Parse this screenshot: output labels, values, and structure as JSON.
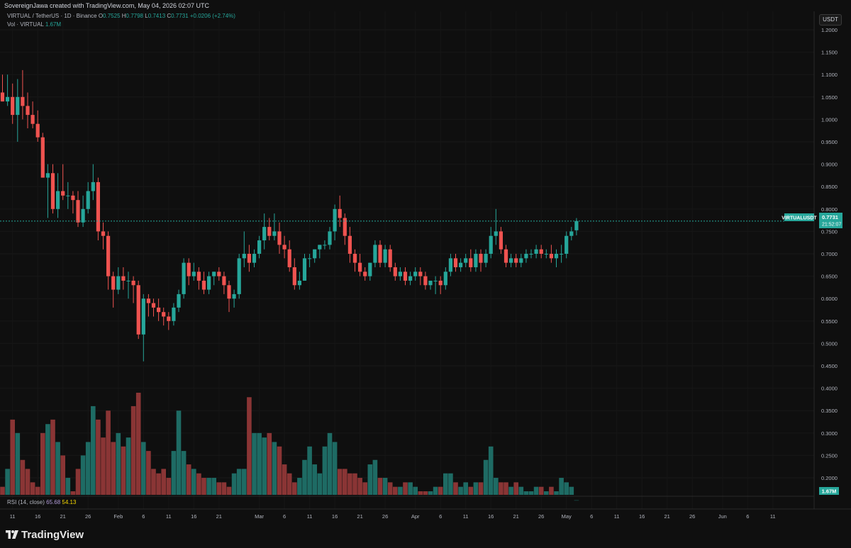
{
  "header": {
    "credit": "SovereignJawa created with TradingView.com, May 04, 2026 02:07 UTC"
  },
  "legend": {
    "symbol": "VIRTUAL / TetherUS · 1D · Binance",
    "o_label": "O",
    "o": "0.7525",
    "h_label": "H",
    "h": "0.7798",
    "l_label": "L",
    "l": "0.7413",
    "c_label": "C",
    "c": "0.7731",
    "change": "+0.0206 (+2.74%)",
    "vol_label": "Vol · VIRTUAL",
    "vol": "1.67M"
  },
  "rsi": {
    "label": "RSI (14, close)",
    "v1": "65.68",
    "v2": "54.13"
  },
  "currency_button": "USDT",
  "price_tag": {
    "symbol": "VIRTUALUSDT",
    "price": "0.7731",
    "countdown": "21:52:07"
  },
  "volume_tag": "1.67M",
  "footer": {
    "brand": "TradingView"
  },
  "colors": {
    "up": "#26a69a",
    "down": "#ef5350",
    "up_volume": "#1e6b64",
    "down_volume": "#8a3535",
    "bg": "#0f0f0f"
  },
  "chart_data": {
    "type": "candlestick",
    "y_axis": {
      "ticks": [
        "1.2000",
        "1.1500",
        "1.1000",
        "1.0500",
        "1.0000",
        "0.9500",
        "0.9000",
        "0.8500",
        "0.8000",
        "0.7500",
        "0.7000",
        "0.6500",
        "0.6000",
        "0.5500",
        "0.5000",
        "0.4500",
        "0.4000",
        "0.3500",
        "0.3000",
        "0.2500",
        "0.2000"
      ],
      "range": [
        0.17,
        1.215
      ]
    },
    "x_axis": {
      "start": "2026-01-09",
      "ticks": [
        {
          "label": "11",
          "day": 2
        },
        {
          "label": "16",
          "day": 7
        },
        {
          "label": "21",
          "day": 12
        },
        {
          "label": "26",
          "day": 17
        },
        {
          "label": "Feb",
          "day": 23
        },
        {
          "label": "6",
          "day": 28
        },
        {
          "label": "11",
          "day": 33
        },
        {
          "label": "16",
          "day": 38
        },
        {
          "label": "21",
          "day": 43
        },
        {
          "label": "Mar",
          "day": 51
        },
        {
          "label": "6",
          "day": 56
        },
        {
          "label": "11",
          "day": 61
        },
        {
          "label": "16",
          "day": 66
        },
        {
          "label": "21",
          "day": 71
        },
        {
          "label": "26",
          "day": 76
        },
        {
          "label": "Apr",
          "day": 82
        },
        {
          "label": "6",
          "day": 87
        },
        {
          "label": "11",
          "day": 92
        },
        {
          "label": "16",
          "day": 97
        },
        {
          "label": "21",
          "day": 102
        },
        {
          "label": "26",
          "day": 107
        },
        {
          "label": "May",
          "day": 112
        },
        {
          "label": "6",
          "day": 117
        },
        {
          "label": "11",
          "day": 122
        },
        {
          "label": "16",
          "day": 127
        },
        {
          "label": "21",
          "day": 132
        },
        {
          "label": "26",
          "day": 137
        },
        {
          "label": "Jun",
          "day": 143
        },
        {
          "label": "6",
          "day": 148
        },
        {
          "label": "11",
          "day": 153
        }
      ]
    },
    "ohlc": [
      [
        1.06,
        1.1,
        1.04,
        1.04
      ],
      [
        1.04,
        1.1,
        1.03,
        1.05
      ],
      [
        1.05,
        1.08,
        0.99,
        1.01
      ],
      [
        1.01,
        1.09,
        0.95,
        1.05
      ],
      [
        1.05,
        1.11,
        1.0,
        1.03
      ],
      [
        1.03,
        1.06,
        0.98,
        1.01
      ],
      [
        1.01,
        1.04,
        0.98,
        0.99
      ],
      [
        0.99,
        1.02,
        0.95,
        0.96
      ],
      [
        0.96,
        0.97,
        0.87,
        0.87
      ],
      [
        0.87,
        0.9,
        0.78,
        0.88
      ],
      [
        0.88,
        0.9,
        0.79,
        0.8
      ],
      [
        0.8,
        0.88,
        0.78,
        0.84
      ],
      [
        0.84,
        0.9,
        0.82,
        0.83
      ],
      [
        0.83,
        0.86,
        0.8,
        0.83
      ],
      [
        0.83,
        0.84,
        0.79,
        0.82
      ],
      [
        0.82,
        0.84,
        0.76,
        0.77
      ],
      [
        0.77,
        0.83,
        0.76,
        0.8
      ],
      [
        0.8,
        0.86,
        0.79,
        0.84
      ],
      [
        0.84,
        0.9,
        0.82,
        0.86
      ],
      [
        0.86,
        0.87,
        0.73,
        0.75
      ],
      [
        0.75,
        0.77,
        0.71,
        0.74
      ],
      [
        0.74,
        0.75,
        0.62,
        0.65
      ],
      [
        0.65,
        0.66,
        0.58,
        0.62
      ],
      [
        0.62,
        0.67,
        0.61,
        0.65
      ],
      [
        0.65,
        0.67,
        0.62,
        0.64
      ],
      [
        0.64,
        0.66,
        0.6,
        0.64
      ],
      [
        0.64,
        0.65,
        0.59,
        0.63
      ],
      [
        0.63,
        0.64,
        0.51,
        0.52
      ],
      [
        0.52,
        0.61,
        0.46,
        0.6
      ],
      [
        0.6,
        0.61,
        0.56,
        0.59
      ],
      [
        0.59,
        0.6,
        0.56,
        0.58
      ],
      [
        0.58,
        0.6,
        0.55,
        0.57
      ],
      [
        0.57,
        0.58,
        0.54,
        0.56
      ],
      [
        0.56,
        0.57,
        0.53,
        0.55
      ],
      [
        0.55,
        0.59,
        0.54,
        0.58
      ],
      [
        0.58,
        0.62,
        0.57,
        0.61
      ],
      [
        0.61,
        0.69,
        0.6,
        0.68
      ],
      [
        0.68,
        0.69,
        0.63,
        0.65
      ],
      [
        0.65,
        0.68,
        0.64,
        0.66
      ],
      [
        0.66,
        0.67,
        0.62,
        0.64
      ],
      [
        0.64,
        0.66,
        0.61,
        0.62
      ],
      [
        0.62,
        0.66,
        0.61,
        0.65
      ],
      [
        0.65,
        0.66,
        0.63,
        0.66
      ],
      [
        0.66,
        0.67,
        0.64,
        0.65
      ],
      [
        0.65,
        0.66,
        0.61,
        0.63
      ],
      [
        0.63,
        0.64,
        0.57,
        0.6
      ],
      [
        0.6,
        0.62,
        0.58,
        0.61
      ],
      [
        0.61,
        0.7,
        0.6,
        0.69
      ],
      [
        0.69,
        0.75,
        0.67,
        0.7
      ],
      [
        0.7,
        0.72,
        0.66,
        0.68
      ],
      [
        0.68,
        0.71,
        0.67,
        0.7
      ],
      [
        0.7,
        0.74,
        0.69,
        0.73
      ],
      [
        0.73,
        0.79,
        0.71,
        0.76
      ],
      [
        0.76,
        0.78,
        0.73,
        0.74
      ],
      [
        0.74,
        0.79,
        0.73,
        0.75
      ],
      [
        0.75,
        0.77,
        0.7,
        0.72
      ],
      [
        0.72,
        0.74,
        0.69,
        0.71
      ],
      [
        0.71,
        0.73,
        0.66,
        0.67
      ],
      [
        0.67,
        0.69,
        0.62,
        0.63
      ],
      [
        0.63,
        0.66,
        0.62,
        0.64
      ],
      [
        0.64,
        0.7,
        0.64,
        0.69
      ],
      [
        0.69,
        0.7,
        0.67,
        0.69
      ],
      [
        0.69,
        0.71,
        0.68,
        0.71
      ],
      [
        0.71,
        0.72,
        0.69,
        0.72
      ],
      [
        0.72,
        0.73,
        0.71,
        0.72
      ],
      [
        0.72,
        0.76,
        0.71,
        0.75
      ],
      [
        0.75,
        0.81,
        0.73,
        0.8
      ],
      [
        0.8,
        0.83,
        0.76,
        0.78
      ],
      [
        0.78,
        0.79,
        0.72,
        0.74
      ],
      [
        0.74,
        0.76,
        0.68,
        0.7
      ],
      [
        0.7,
        0.71,
        0.66,
        0.68
      ],
      [
        0.68,
        0.7,
        0.65,
        0.66
      ],
      [
        0.66,
        0.67,
        0.64,
        0.65
      ],
      [
        0.65,
        0.68,
        0.64,
        0.68
      ],
      [
        0.68,
        0.73,
        0.67,
        0.72
      ],
      [
        0.72,
        0.73,
        0.67,
        0.68
      ],
      [
        0.68,
        0.72,
        0.67,
        0.71
      ],
      [
        0.71,
        0.72,
        0.66,
        0.67
      ],
      [
        0.67,
        0.68,
        0.64,
        0.65
      ],
      [
        0.65,
        0.67,
        0.64,
        0.66
      ],
      [
        0.66,
        0.67,
        0.63,
        0.64
      ],
      [
        0.64,
        0.66,
        0.63,
        0.65
      ],
      [
        0.65,
        0.67,
        0.64,
        0.66
      ],
      [
        0.66,
        0.67,
        0.63,
        0.65
      ],
      [
        0.65,
        0.66,
        0.62,
        0.63
      ],
      [
        0.63,
        0.64,
        0.62,
        0.64
      ],
      [
        0.64,
        0.65,
        0.61,
        0.64
      ],
      [
        0.64,
        0.65,
        0.61,
        0.63
      ],
      [
        0.63,
        0.67,
        0.62,
        0.66
      ],
      [
        0.66,
        0.7,
        0.65,
        0.69
      ],
      [
        0.69,
        0.7,
        0.66,
        0.67
      ],
      [
        0.67,
        0.69,
        0.66,
        0.68
      ],
      [
        0.68,
        0.7,
        0.67,
        0.69
      ],
      [
        0.69,
        0.71,
        0.66,
        0.67
      ],
      [
        0.67,
        0.71,
        0.66,
        0.7
      ],
      [
        0.7,
        0.71,
        0.66,
        0.68
      ],
      [
        0.68,
        0.71,
        0.67,
        0.7
      ],
      [
        0.7,
        0.76,
        0.69,
        0.74
      ],
      [
        0.74,
        0.8,
        0.72,
        0.75
      ],
      [
        0.75,
        0.76,
        0.7,
        0.71
      ],
      [
        0.71,
        0.72,
        0.67,
        0.68
      ],
      [
        0.68,
        0.7,
        0.67,
        0.69
      ],
      [
        0.69,
        0.7,
        0.67,
        0.68
      ],
      [
        0.68,
        0.7,
        0.67,
        0.69
      ],
      [
        0.69,
        0.71,
        0.68,
        0.7
      ],
      [
        0.7,
        0.71,
        0.69,
        0.7
      ],
      [
        0.7,
        0.72,
        0.69,
        0.71
      ],
      [
        0.71,
        0.72,
        0.69,
        0.7
      ],
      [
        0.7,
        0.71,
        0.69,
        0.7
      ],
      [
        0.7,
        0.72,
        0.68,
        0.69
      ],
      [
        0.69,
        0.71,
        0.67,
        0.7
      ],
      [
        0.7,
        0.72,
        0.68,
        0.7
      ],
      [
        0.7,
        0.75,
        0.69,
        0.74
      ],
      [
        0.74,
        0.76,
        0.73,
        0.75
      ],
      [
        0.7525,
        0.7798,
        0.7413,
        0.7731
      ]
    ],
    "volume": [
      0.18,
      0.22,
      0.33,
      0.3,
      0.24,
      0.22,
      0.19,
      0.18,
      0.3,
      0.32,
      0.33,
      0.28,
      0.25,
      0.2,
      0.17,
      0.22,
      0.25,
      0.28,
      0.36,
      0.33,
      0.29,
      0.35,
      0.28,
      0.3,
      0.27,
      0.29,
      0.36,
      0.39,
      0.28,
      0.26,
      0.22,
      0.21,
      0.22,
      0.2,
      0.26,
      0.35,
      0.26,
      0.23,
      0.22,
      0.21,
      0.2,
      0.2,
      0.2,
      0.19,
      0.19,
      0.18,
      0.21,
      0.22,
      0.22,
      0.38,
      0.3,
      0.3,
      0.29,
      0.3,
      0.28,
      0.27,
      0.23,
      0.21,
      0.19,
      0.2,
      0.24,
      0.27,
      0.23,
      0.21,
      0.27,
      0.3,
      0.28,
      0.22,
      0.22,
      0.21,
      0.21,
      0.2,
      0.19,
      0.23,
      0.24,
      0.2,
      0.2,
      0.19,
      0.18,
      0.18,
      0.19,
      0.19,
      0.18,
      0.17,
      0.17,
      0.17,
      0.18,
      0.18,
      0.21,
      0.21,
      0.19,
      0.18,
      0.19,
      0.18,
      0.19,
      0.19,
      0.24,
      0.27,
      0.2,
      0.19,
      0.19,
      0.18,
      0.19,
      0.18,
      0.17,
      0.17,
      0.18,
      0.18,
      0.17,
      0.18,
      0.17,
      0.2,
      0.19,
      0.18,
      0.15
    ]
  }
}
